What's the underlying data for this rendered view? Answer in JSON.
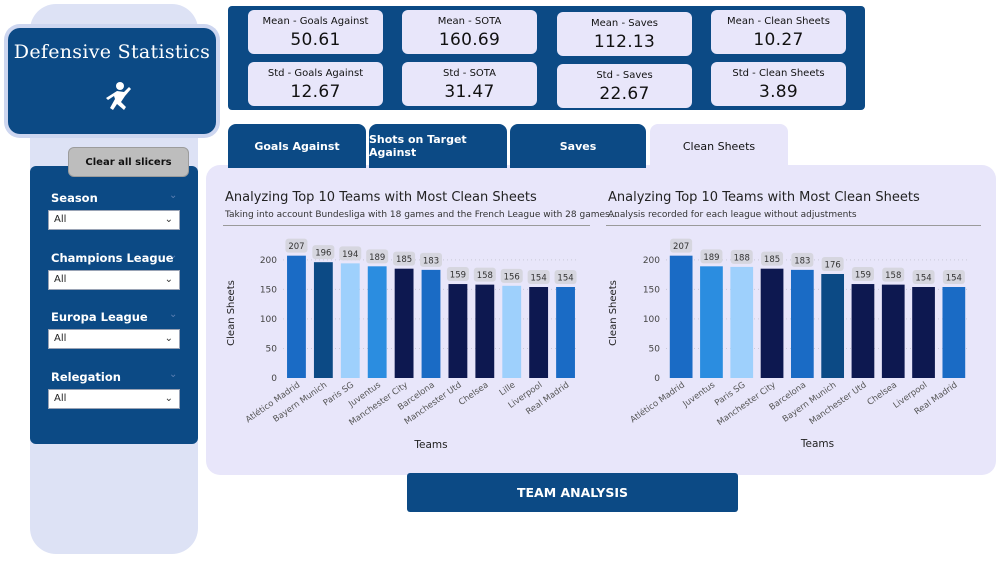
{
  "sidebar": {
    "title": "Defensive Statistics",
    "clear_button": "Clear all slicers",
    "slicers": [
      {
        "label": "Season",
        "value": "All"
      },
      {
        "label": "Champions League",
        "value": "All"
      },
      {
        "label": "Europa League",
        "value": "All"
      },
      {
        "label": "Relegation",
        "value": "All"
      }
    ]
  },
  "kpis": [
    {
      "label": "Mean - Goals Against",
      "value": "50.61"
    },
    {
      "label": "Mean - SOTA",
      "value": "160.69"
    },
    {
      "label": "Mean - Saves",
      "value": "112.13"
    },
    {
      "label": "Mean - Clean Sheets",
      "value": "10.27"
    },
    {
      "label": "Std - Goals Against",
      "value": "12.67"
    },
    {
      "label": "Std - SOTA",
      "value": "31.47"
    },
    {
      "label": "Std - Saves",
      "value": "22.67"
    },
    {
      "label": "Std - Clean Sheets",
      "value": "3.89"
    }
  ],
  "tabs": [
    {
      "label": "Goals Against",
      "active": false
    },
    {
      "label": "Shots on Target Against",
      "active": false
    },
    {
      "label": "Saves",
      "active": false
    },
    {
      "label": "Clean Sheets",
      "active": true
    }
  ],
  "team_button": "TEAM ANALYSIS",
  "colors": {
    "navy": "#0c4a85",
    "panel": "#e8e6fa",
    "sidebar": "#dde2f5"
  },
  "chart_data": [
    {
      "type": "bar",
      "title": "Analyzing Top 10 Teams with Most Clean Sheets",
      "subtitle": "Taking into account Bundesliga with 18 games and the French League with 28 games...",
      "xlabel": "Teams",
      "ylabel": "Clean Sheets",
      "ylim": [
        0,
        220
      ],
      "yticks": [
        0,
        50,
        100,
        150,
        200
      ],
      "categories": [
        "Atlético Madrid",
        "Bayern Munich",
        "Paris SG",
        "Juventus",
        "Manchester City",
        "Barcelona",
        "Manchester Utd",
        "Chelsea",
        "Lille",
        "Liverpool",
        "Real Madrid"
      ],
      "values": [
        207,
        196,
        194,
        189,
        185,
        183,
        159,
        158,
        156,
        154,
        154
      ],
      "colors": [
        "#1a6bc5",
        "#0c4a85",
        "#9ed0fc",
        "#2b8de0",
        "#0d1850",
        "#1a6bc5",
        "#0d1850",
        "#0d1850",
        "#9ed0fc",
        "#0d1850",
        "#1a6bc5"
      ]
    },
    {
      "type": "bar",
      "title": "Analyzing Top 10 Teams with Most Clean Sheets",
      "subtitle": "Analysis recorded for each league without adjustments",
      "xlabel": "Teams",
      "ylabel": "Clean Sheets",
      "ylim": [
        0,
        220
      ],
      "yticks": [
        0,
        50,
        100,
        150,
        200
      ],
      "categories": [
        "Atlético Madrid",
        "Juventus",
        "Paris SG",
        "Manchester City",
        "Barcelona",
        "Bayern Munich",
        "Manchester Utd",
        "Chelsea",
        "Liverpool",
        "Real Madrid"
      ],
      "values": [
        207,
        189,
        188,
        185,
        183,
        176,
        159,
        158,
        154,
        154
      ],
      "colors": [
        "#1a6bc5",
        "#2b8de0",
        "#9ed0fc",
        "#0d1850",
        "#1a6bc5",
        "#0c4a85",
        "#0d1850",
        "#0d1850",
        "#0d1850",
        "#1a6bc5"
      ]
    }
  ]
}
